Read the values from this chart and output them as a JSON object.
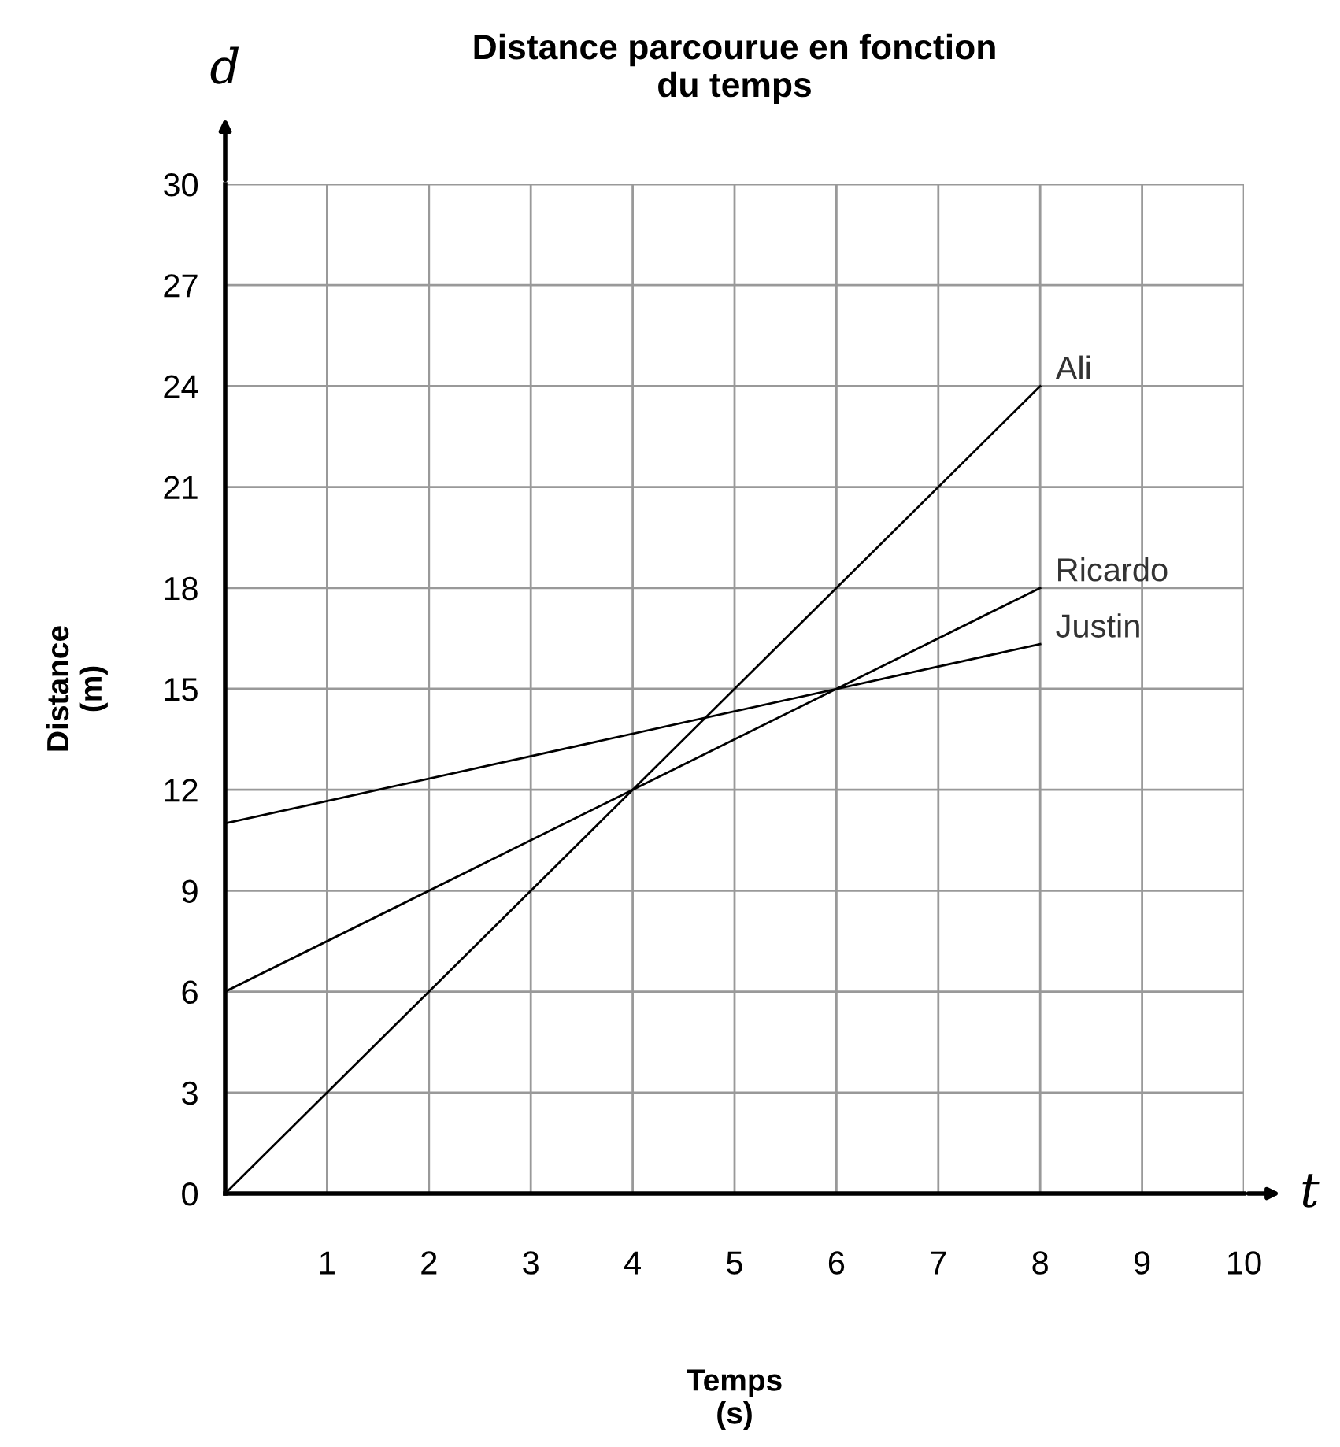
{
  "chart_data": {
    "type": "line",
    "title": "Distance parcourue en fonction\ndu temps",
    "xlabel": "Temps\n(s)",
    "ylabel": "Distance\n(m)",
    "annotations": [
      "d",
      "t"
    ],
    "x": [
      0,
      8
    ],
    "series": [
      {
        "name": "Ali",
        "color": "#000000",
        "values": [
          0,
          24
        ]
      },
      {
        "name": "Ricardo",
        "color": "#000000",
        "values": [
          6,
          18
        ]
      },
      {
        "name": "Justin",
        "color": "#000000",
        "values": [
          11,
          16.33
        ]
      }
    ],
    "xlim": [
      0,
      10
    ],
    "ylim": [
      0,
      30
    ],
    "xticks": [
      1,
      2,
      3,
      4,
      5,
      6,
      7,
      8,
      9,
      10
    ],
    "yticks": [
      0,
      3,
      6,
      9,
      12,
      15,
      18,
      21,
      24,
      27,
      30
    ],
    "grid": true,
    "legend": false,
    "marker": "none",
    "line_style": "solid"
  }
}
